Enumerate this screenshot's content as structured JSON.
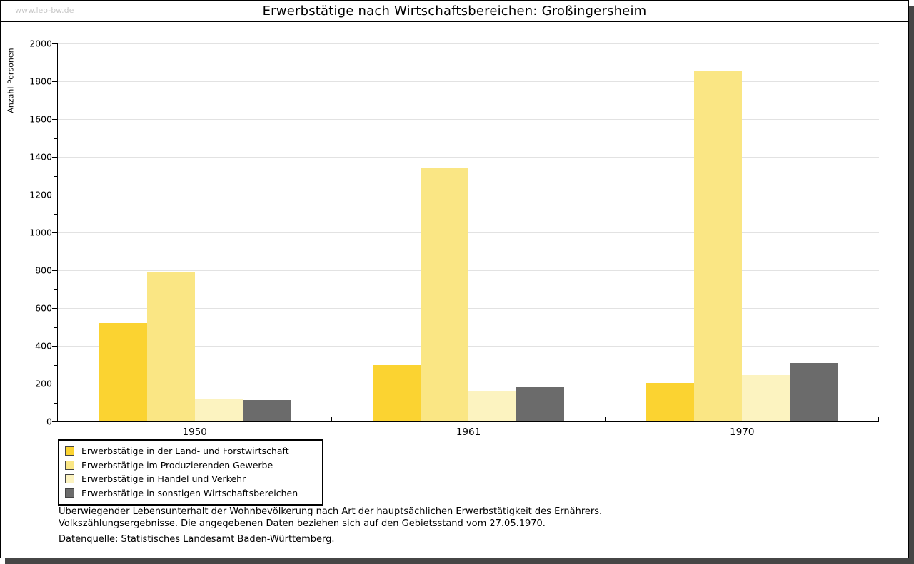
{
  "watermark": "www.leo-bw.de",
  "title": "Erwerbstätige nach Wirtschaftsbereichen: Großingersheim",
  "chart_data": {
    "type": "bar",
    "title": "Erwerbstätige nach Wirtschaftsbereichen: Großingersheim",
    "xlabel": "",
    "ylabel": "Anzahl Personen",
    "ylim": [
      0,
      2000
    ],
    "ytick_step": 200,
    "yminor_step": 100,
    "grid": true,
    "legend_position": "bottom-left",
    "categories": [
      "1950",
      "1961",
      "1970"
    ],
    "series": [
      {
        "name": "Erwerbstätige in der Land- und Forstwirtschaft",
        "color": "#fbd331",
        "values": [
          520,
          300,
          205
        ]
      },
      {
        "name": "Erwerbstätige im Produzierenden Gewerbe",
        "color": "#fae684",
        "values": [
          790,
          1340,
          1855
        ]
      },
      {
        "name": "Erwerbstätige in Handel und Verkehr",
        "color": "#fcf3c0",
        "values": [
          120,
          160,
          245
        ]
      },
      {
        "name": "Erwerbstätige in sonstigen Wirtschaftsbereichen",
        "color": "#6b6b6b",
        "values": [
          115,
          180,
          310
        ]
      }
    ]
  },
  "footnotes": {
    "line1": "Überwiegender Lebensunterhalt der Wohnbevölkerung nach Art der hauptsächlichen Erwerbstätigkeit des Ernährers.",
    "line2": "Volkszählungsergebnisse. Die angegebenen Daten beziehen sich auf den Gebietsstand vom 27.05.1970.",
    "source": "Datenquelle: Statistisches Landesamt Baden-Württemberg."
  },
  "colors": {
    "gridline": "#e2e2e2",
    "axis": "#000000",
    "frame_shadow": "#464646",
    "watermark_text": "#c9c9c9"
  }
}
